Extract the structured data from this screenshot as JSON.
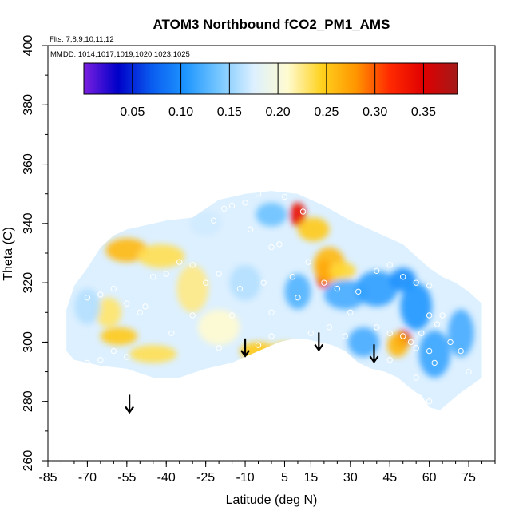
{
  "chart_data": {
    "type": "heatmap",
    "title": "ATOM3 Northbound fCO2_PM1_AMS",
    "annotations": [
      "Flts: 7,8,9,10,11,12",
      "MMDD: 1014,1017,1019,1020,1023,1025"
    ],
    "xlabel": "Latitude (deg N)",
    "ylabel": "Theta (C)",
    "xlim": [
      -85,
      85
    ],
    "ylim": [
      260,
      400
    ],
    "x_tick_labels": [
      "-85",
      "-70",
      "-55",
      "-40",
      "-25",
      "-10",
      "5",
      "15",
      "30",
      "45",
      "60",
      "75"
    ],
    "x_tick_values": [
      -85,
      -70,
      -55,
      -40,
      -25,
      -10,
      5,
      15,
      30,
      45,
      60,
      75
    ],
    "y_tick_labels": [
      "260",
      "280",
      "300",
      "320",
      "340",
      "360",
      "380",
      "400"
    ],
    "y_tick_values": [
      260,
      280,
      300,
      320,
      340,
      360,
      380,
      400
    ],
    "colorbar": {
      "range": [
        0.0,
        0.385
      ],
      "tick_labels": [
        "0.05",
        "0.10",
        "0.15",
        "0.20",
        "0.25",
        "0.30",
        "0.35"
      ],
      "tick_values": [
        0.05,
        0.1,
        0.15,
        0.2,
        0.25,
        0.3,
        0.35
      ],
      "colors": [
        "#7b1fe0",
        "#0000c8",
        "#0a5cf0",
        "#1e96ff",
        "#78c8ff",
        "#ddf0ff",
        "#fffbd0",
        "#ffd21e",
        "#ff9600",
        "#ff2a00",
        "#e00000",
        "#a31a1a"
      ]
    },
    "arrows": [
      {
        "lat": -54,
        "theta": 279
      },
      {
        "lat": -10,
        "theta": 298
      },
      {
        "lat": 18,
        "theta": 300
      },
      {
        "lat": 39,
        "theta": 296
      }
    ],
    "outline_top": [
      [
        -78,
        311
      ],
      [
        -75,
        319
      ],
      [
        -70,
        325
      ],
      [
        -65,
        332
      ],
      [
        -60,
        336
      ],
      [
        -55,
        338
      ],
      [
        -50,
        339
      ],
      [
        -40,
        341
      ],
      [
        -30,
        342
      ],
      [
        -25,
        345
      ],
      [
        -20,
        348
      ],
      [
        -10,
        350
      ],
      [
        0,
        351
      ],
      [
        10,
        350
      ],
      [
        20,
        346
      ],
      [
        30,
        341
      ],
      [
        40,
        337
      ],
      [
        50,
        333
      ],
      [
        55,
        329
      ],
      [
        60,
        325
      ],
      [
        65,
        322
      ],
      [
        70,
        320
      ],
      [
        75,
        317
      ],
      [
        80,
        313
      ]
    ],
    "outline_bottom": [
      [
        80,
        288
      ],
      [
        77,
        286
      ],
      [
        72,
        283
      ],
      [
        68,
        280
      ],
      [
        64,
        277
      ],
      [
        60,
        278
      ],
      [
        57,
        282
      ],
      [
        55,
        283
      ],
      [
        52,
        285
      ],
      [
        48,
        288
      ],
      [
        43,
        290
      ],
      [
        38,
        291
      ],
      [
        33,
        293
      ],
      [
        28,
        297
      ],
      [
        23,
        299
      ],
      [
        18,
        300
      ],
      [
        13,
        301
      ],
      [
        8,
        301
      ],
      [
        3,
        300
      ],
      [
        -5,
        297
      ],
      [
        -15,
        293
      ],
      [
        -25,
        291
      ],
      [
        -35,
        288
      ],
      [
        -45,
        288
      ],
      [
        -55,
        291
      ],
      [
        -65,
        292
      ],
      [
        -75,
        294
      ],
      [
        -78,
        297
      ]
    ],
    "blobs": [
      {
        "lat": 10,
        "theta": 343,
        "value": 0.34,
        "sx": 3,
        "sy": 4
      },
      {
        "lat": 16,
        "theta": 338,
        "value": 0.25,
        "sx": 6,
        "sy": 4
      },
      {
        "lat": 20,
        "theta": 323,
        "value": 0.33,
        "sx": 3,
        "sy": 5
      },
      {
        "lat": 22,
        "theta": 326,
        "value": 0.26,
        "sx": 6,
        "sy": 6
      },
      {
        "lat": 27,
        "theta": 324,
        "value": 0.24,
        "sx": 5,
        "sy": 3
      },
      {
        "lat": 50,
        "theta": 301,
        "value": 0.35,
        "sx": 3,
        "sy": 3
      },
      {
        "lat": 48,
        "theta": 299,
        "value": 0.26,
        "sx": 4,
        "sy": 4
      },
      {
        "lat": -55,
        "theta": 331,
        "value": 0.26,
        "sx": 8,
        "sy": 4
      },
      {
        "lat": -42,
        "theta": 329,
        "value": 0.235,
        "sx": 9,
        "sy": 4
      },
      {
        "lat": -58,
        "theta": 302,
        "value": 0.25,
        "sx": 7,
        "sy": 3
      },
      {
        "lat": -45,
        "theta": 296,
        "value": 0.235,
        "sx": 9,
        "sy": 3
      },
      {
        "lat": -62,
        "theta": 310,
        "value": 0.23,
        "sx": 5,
        "sy": 5
      },
      {
        "lat": -30,
        "theta": 318,
        "value": 0.225,
        "sx": 6,
        "sy": 8
      },
      {
        "lat": -5,
        "theta": 297,
        "value": 0.25,
        "sx": 7,
        "sy": 3
      },
      {
        "lat": 5,
        "theta": 297,
        "value": 0.24,
        "sx": 6,
        "sy": 3
      },
      {
        "lat": -20,
        "theta": 305,
        "value": 0.21,
        "sx": 8,
        "sy": 6
      },
      {
        "lat": 0,
        "theta": 343,
        "value": 0.135,
        "sx": 6,
        "sy": 4
      },
      {
        "lat": 10,
        "theta": 317,
        "value": 0.125,
        "sx": 5,
        "sy": 6
      },
      {
        "lat": 28,
        "theta": 316,
        "value": 0.12,
        "sx": 8,
        "sy": 5
      },
      {
        "lat": 40,
        "theta": 318,
        "value": 0.11,
        "sx": 8,
        "sy": 6
      },
      {
        "lat": 50,
        "theta": 321,
        "value": 0.1,
        "sx": 5,
        "sy": 4
      },
      {
        "lat": 55,
        "theta": 312,
        "value": 0.105,
        "sx": 6,
        "sy": 8
      },
      {
        "lat": 62,
        "theta": 296,
        "value": 0.115,
        "sx": 6,
        "sy": 8
      },
      {
        "lat": 72,
        "theta": 303,
        "value": 0.12,
        "sx": 5,
        "sy": 8
      },
      {
        "lat": 35,
        "theta": 300,
        "value": 0.12,
        "sx": 6,
        "sy": 5
      },
      {
        "lat": -70,
        "theta": 312,
        "value": 0.16,
        "sx": 5,
        "sy": 6
      },
      {
        "lat": -10,
        "theta": 320,
        "value": 0.16,
        "sx": 6,
        "sy": 6
      },
      {
        "lat": -25,
        "theta": 340,
        "value": 0.17,
        "sx": 6,
        "sy": 4
      }
    ],
    "observation_points": [
      [
        -10,
        347
      ],
      [
        -15,
        346
      ],
      [
        -5,
        350
      ],
      [
        5,
        349
      ],
      [
        12,
        344
      ],
      [
        -18,
        345
      ],
      [
        -22,
        341
      ],
      [
        -8,
        338
      ],
      [
        0,
        332
      ],
      [
        3,
        333
      ],
      [
        14,
        327
      ],
      [
        -30,
        326
      ],
      [
        -35,
        327
      ],
      [
        -40,
        323
      ],
      [
        -45,
        322
      ],
      [
        -25,
        320
      ],
      [
        -20,
        323
      ],
      [
        -12,
        318
      ],
      [
        -3,
        320
      ],
      [
        8,
        322
      ],
      [
        20,
        320
      ],
      [
        25,
        318
      ],
      [
        33,
        317
      ],
      [
        40,
        324
      ],
      [
        45,
        326
      ],
      [
        50,
        322
      ],
      [
        55,
        320
      ],
      [
        60,
        319
      ],
      [
        -60,
        318
      ],
      [
        -55,
        313
      ],
      [
        -50,
        310
      ],
      [
        -65,
        316
      ],
      [
        -70,
        315
      ],
      [
        -48,
        312
      ],
      [
        -38,
        303
      ],
      [
        -30,
        309
      ],
      [
        -15,
        309
      ],
      [
        0,
        310
      ],
      [
        10,
        315
      ],
      [
        30,
        310
      ],
      [
        40,
        305
      ],
      [
        45,
        303
      ],
      [
        50,
        302
      ],
      [
        53,
        300
      ],
      [
        57,
        303
      ],
      [
        60,
        309
      ],
      [
        63,
        306
      ],
      [
        65,
        309
      ],
      [
        68,
        300
      ],
      [
        72,
        297
      ],
      [
        75,
        290
      ],
      [
        78,
        285
      ],
      [
        55,
        298
      ],
      [
        60,
        297
      ],
      [
        62,
        293
      ],
      [
        45,
        294
      ],
      [
        55,
        288
      ],
      [
        -60,
        297
      ],
      [
        -65,
        294
      ],
      [
        -70,
        293
      ],
      [
        -75,
        293
      ],
      [
        -55,
        295
      ],
      [
        -20,
        298
      ],
      [
        -5,
        299
      ],
      [
        0,
        302
      ],
      [
        15,
        303
      ],
      [
        22,
        305
      ],
      [
        28,
        302
      ],
      [
        60,
        280
      ]
    ]
  }
}
